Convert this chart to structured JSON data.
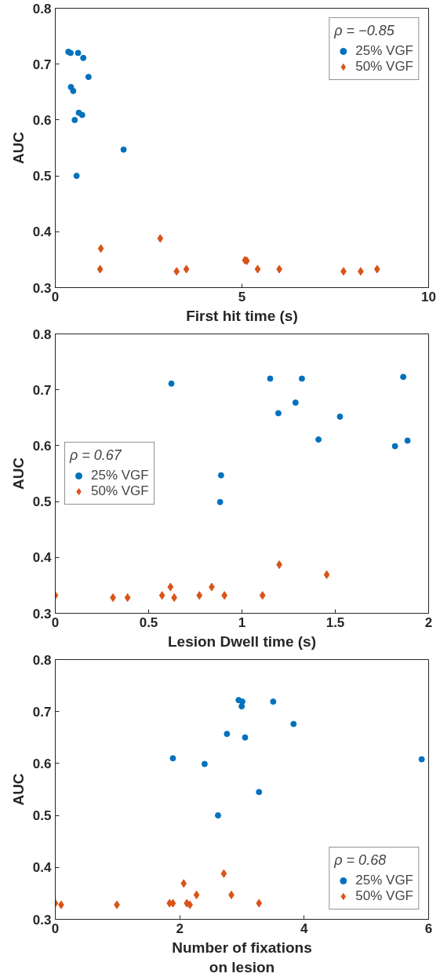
{
  "chart_data": [
    {
      "type": "scatter",
      "xlabel": "First hit time (s)",
      "ylabel": "AUC",
      "legend_title": "ρ = −0.85",
      "legend": "top right",
      "grid": false,
      "xlim": [
        0,
        10
      ],
      "xticks": [
        0,
        5,
        10
      ],
      "ylim": [
        0.3,
        0.8
      ],
      "yticks": [
        0.3,
        0.4,
        0.5,
        0.6,
        0.7,
        0.8
      ],
      "series": [
        {
          "name": "25% VGF",
          "color": "#0072bd",
          "marker": "circle",
          "x": [
            0.35,
            0.41,
            0.61,
            0.75,
            0.89,
            0.42,
            0.48,
            0.63,
            0.72,
            0.52,
            0.57,
            1.83
          ],
          "values": [
            0.722,
            0.72,
            0.72,
            0.711,
            0.677,
            0.659,
            0.652,
            0.613,
            0.609,
            0.6,
            0.5,
            0.547
          ]
        },
        {
          "name": "50% VGF",
          "color": "#d95319",
          "marker": "diamond",
          "x": [
            1.22,
            1.2,
            2.81,
            3.25,
            3.51,
            5.08,
            5.13,
            5.42,
            6.0,
            7.72,
            8.18,
            8.62
          ],
          "values": [
            0.37,
            0.333,
            0.388,
            0.329,
            0.333,
            0.349,
            0.348,
            0.333,
            0.333,
            0.329,
            0.329,
            0.333
          ]
        }
      ]
    },
    {
      "type": "scatter",
      "xlabel": "Lesion Dwell time (s)",
      "ylabel": "AUC",
      "legend_title": "ρ = 0.67",
      "legend": "left",
      "grid": false,
      "xlim": [
        0,
        2
      ],
      "xticks": [
        0,
        0.5,
        1,
        1.5,
        2
      ],
      "ylim": [
        0.3,
        0.8
      ],
      "yticks": [
        0.3,
        0.4,
        0.5,
        0.6,
        0.7,
        0.8
      ],
      "series": [
        {
          "name": "25% VGF",
          "color": "#0072bd",
          "marker": "circle",
          "x": [
            0.622,
            1.151,
            1.321,
            1.287,
            1.195,
            0.888,
            0.883,
            1.41,
            1.525,
            1.82,
            1.887,
            1.864
          ],
          "values": [
            0.711,
            0.72,
            0.72,
            0.677,
            0.658,
            0.547,
            0.499,
            0.611,
            0.652,
            0.599,
            0.609,
            0.723
          ]
        },
        {
          "name": "50% VGF",
          "color": "#d95319",
          "marker": "diamond",
          "x": [
            0,
            0.309,
            0.387,
            0.572,
            0.617,
            0.637,
            0.772,
            0.838,
            0.906,
            1.11,
            1.2,
            1.454
          ],
          "values": [
            0.332,
            0.328,
            0.328,
            0.332,
            0.347,
            0.328,
            0.332,
            0.347,
            0.332,
            0.332,
            0.387,
            0.369
          ]
        }
      ]
    },
    {
      "type": "scatter",
      "xlabel": "Number of fixations\non lesion",
      "ylabel": "AUC",
      "legend_title": "ρ = 0.68",
      "legend": "bottom right",
      "grid": false,
      "xlim": [
        0,
        6
      ],
      "xticks": [
        0,
        2,
        4,
        6
      ],
      "ylim": [
        0.3,
        0.8
      ],
      "yticks": [
        0.3,
        0.4,
        0.5,
        0.6,
        0.7,
        0.8
      ],
      "series": [
        {
          "name": "25% VGF",
          "color": "#0072bd",
          "marker": "circle",
          "x": [
            2.947,
            3.005,
            2.996,
            3.502,
            3.829,
            2.759,
            3.05,
            1.89,
            2.4,
            3.274,
            2.615,
            5.889
          ],
          "values": [
            0.722,
            0.719,
            0.71,
            0.719,
            0.676,
            0.657,
            0.65,
            0.61,
            0.599,
            0.545,
            0.5,
            0.608
          ]
        },
        {
          "name": "50% VGF",
          "color": "#d95319",
          "marker": "diamond",
          "x": [
            0,
            0.094,
            0.99,
            1.836,
            1.89,
            2.064,
            2.114,
            2.163,
            2.27,
            2.709,
            2.83,
            3.274
          ],
          "values": [
            0.331,
            0.328,
            0.328,
            0.331,
            0.331,
            0.369,
            0.331,
            0.328,
            0.347,
            0.388,
            0.347,
            0.331
          ]
        }
      ]
    }
  ]
}
